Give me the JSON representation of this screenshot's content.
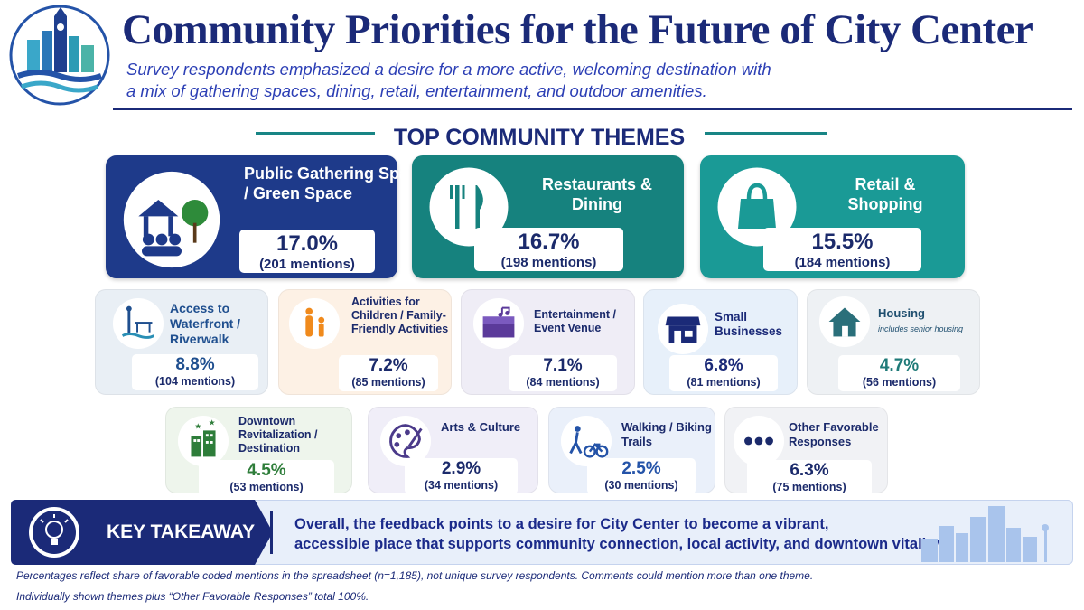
{
  "header": {
    "title": "Community Priorities for the Future of City Center",
    "subtitle_lines": [
      "Survey respondents emphasized a desire for a more active, welcoming destination with",
      "a mix of gathering spaces, dining, retail, entertainment, and outdoor amenities."
    ]
  },
  "section_title": "TOP COMMUNITY THEMES",
  "top_themes": [
    {
      "label": "Public Gathering Space / Green Space",
      "percent": "17.0%",
      "mentions": "(201 mentions)"
    },
    {
      "label": "Restaurants & Dining",
      "percent": "16.7%",
      "mentions": "(198 mentions)"
    },
    {
      "label": "Retail & Shopping",
      "percent": "15.5%",
      "mentions": "(184 mentions)"
    }
  ],
  "themes_row2": [
    {
      "label": "Access to Waterfront / Riverwalk",
      "percent": "8.8%",
      "mentions": "(104 mentions)"
    },
    {
      "label": "Activities for Children / Family-Friendly Activities",
      "percent": "7.2%",
      "mentions": "(85 mentions)"
    },
    {
      "label": "Entertainment / Event Venue",
      "percent": "7.1%",
      "mentions": "(84 mentions)"
    },
    {
      "label": "Small Businesses",
      "percent": "6.8%",
      "mentions": "(81 mentions)"
    },
    {
      "label": "Housing",
      "note": "includes senior housing",
      "percent": "4.7%",
      "mentions": "(56 mentions)"
    }
  ],
  "themes_row3": [
    {
      "label": "Downtown Revitalization / Destination",
      "percent": "4.5%",
      "mentions": "(53 mentions)"
    },
    {
      "label": "Arts & Culture",
      "percent": "2.9%",
      "mentions": "(34 mentions)"
    },
    {
      "label": "Walking / Biking Trails",
      "percent": "2.5%",
      "mentions": "(30 mentions)"
    },
    {
      "label": "Other Favorable Responses",
      "percent": "6.3%",
      "mentions": "(75 mentions)"
    }
  ],
  "takeaway": {
    "label": "KEY TAKEAWAY",
    "lines": [
      "Overall, the feedback points to a desire for City Center to become a vibrant,",
      "accessible place that supports community connection, local activity, and downtown vitality."
    ]
  },
  "footnotes": [
    "Percentages reflect share of favorable coded mentions in the spreadsheet (n=1,185), not unique survey respondents. Comments could mention more than one theme.",
    "Individually shown themes plus “Other Favorable Responses” total 100%."
  ]
}
